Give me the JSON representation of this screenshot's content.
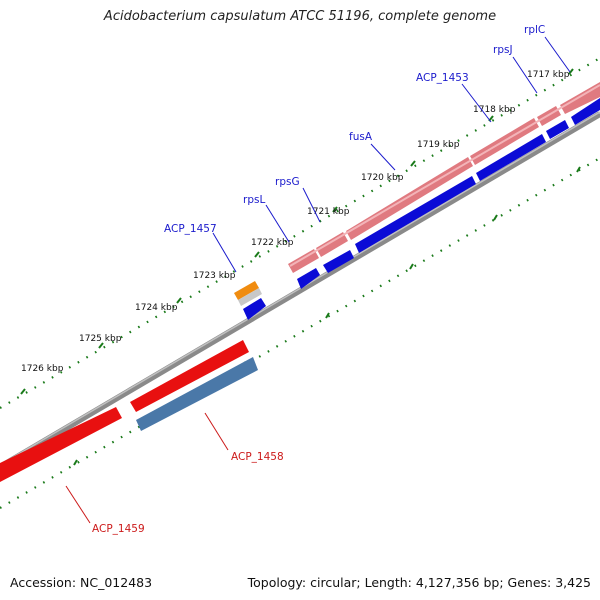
{
  "title": "Acidobacterium capsulatum ATCC 51196, complete genome",
  "footer": {
    "accession": "Accession: NC_012483",
    "topology": "Topology: circular; Length: 4,127,356 bp; Genes: 3,425"
  },
  "colors": {
    "backbone": "#858585",
    "tick": "#1a7a1a",
    "label_blue": "#1a1acc",
    "label_red": "#cc1a1a",
    "pink_gene": "#e07a80",
    "blue_gene": "#0b0bd6",
    "red_gene": "#e81010",
    "steel_gene": "#4a78a8",
    "orange_gene": "#f08c10",
    "gray_gene": "#c8c8c8"
  },
  "ticks": [
    "1717 kbp",
    "1718 kbp",
    "1719 kbp",
    "1720 kbp",
    "1721 kbp",
    "1722 kbp",
    "1723 kbp",
    "1724 kbp",
    "1725 kbp",
    "1726 kbp"
  ],
  "gene_labels_top": [
    "rplC",
    "rpsJ",
    "ACP_1453",
    "fusA",
    "rpsG",
    "rpsL",
    "ACP_1457"
  ],
  "gene_labels_bottom": [
    "ACP_1458",
    "ACP_1459"
  ]
}
